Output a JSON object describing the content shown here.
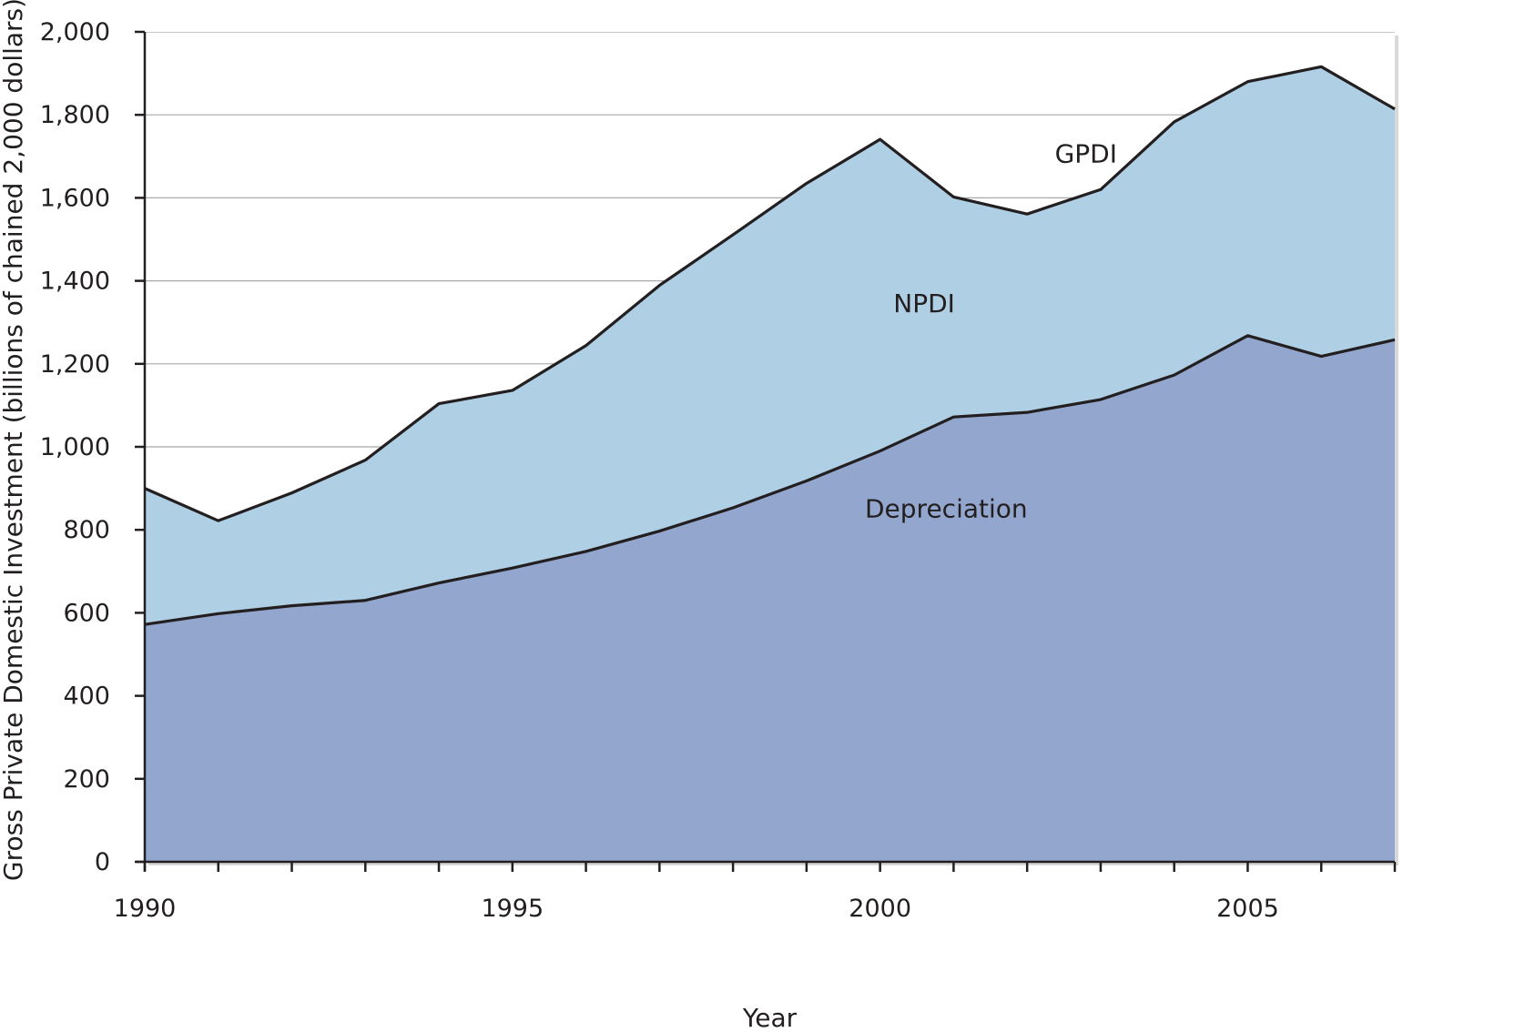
{
  "chart_data": {
    "type": "area",
    "stacked": true,
    "title": "",
    "xlabel": "Year",
    "ylabel": "Gross Private Domestic Investment (billions of chained 2,000 dollars)",
    "xlim": [
      1990,
      2007
    ],
    "ylim": [
      0,
      2000
    ],
    "x_ticks": [
      1990,
      1995,
      2000,
      2005
    ],
    "y_ticks": [
      0,
      200,
      400,
      600,
      800,
      1000,
      1200,
      1400,
      1600,
      1800,
      2000
    ],
    "y_tick_labels": [
      "0",
      "200",
      "400",
      "600",
      "800",
      "1,000",
      "1,200",
      "1,400",
      "1,600",
      "1,800",
      "2,000"
    ],
    "grid": "horizontal",
    "x": [
      1990,
      1991,
      1992,
      1993,
      1994,
      1995,
      1996,
      1997,
      1998,
      1999,
      2000,
      2001,
      2002,
      2003,
      2004,
      2005,
      2006,
      2007
    ],
    "series": [
      {
        "name": "Depreciation",
        "color": "#93a6cd",
        "values": [
          572,
          598,
          617,
          630,
          672,
          708,
          748,
          797,
          853,
          918,
          990,
          1072,
          1083,
          1114,
          1173,
          1268,
          1218,
          1258
        ]
      },
      {
        "name": "NPDI",
        "color": "#afcfe5",
        "values": [
          328,
          224,
          272,
          338,
          432,
          428,
          496,
          592,
          658,
          717,
          751,
          530,
          478,
          506,
          610,
          612,
          698,
          556
        ]
      }
    ],
    "total_series": {
      "name": "GPDI",
      "values": [
        900,
        822,
        889,
        968,
        1104,
        1136,
        1244,
        1389,
        1511,
        1635,
        1741,
        1602,
        1561,
        1620,
        1783,
        1880,
        1916,
        1814
      ]
    },
    "annotations": [
      "GPDI",
      "NPDI",
      "Depreciation"
    ]
  }
}
